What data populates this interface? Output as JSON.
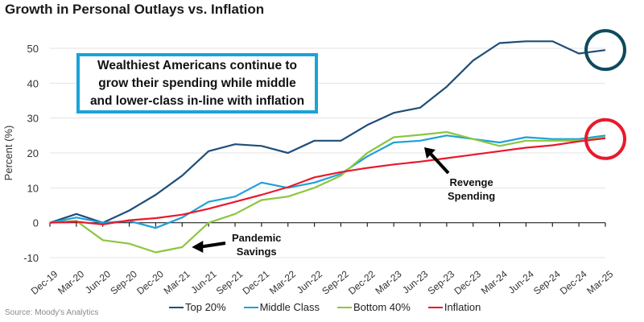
{
  "chart_data": {
    "type": "line",
    "title": "Growth in Personal Outlays vs. Inflation",
    "xlabel": "",
    "ylabel": "Percent (%)",
    "ylim": [
      -10,
      50
    ],
    "yticks": [
      -10,
      0,
      10,
      20,
      30,
      40,
      50
    ],
    "grid": true,
    "legend_position": "bottom",
    "categories": [
      "Dec-19",
      "Mar-20",
      "Jun-20",
      "Sep-20",
      "Dec-20",
      "Mar-21",
      "Jun-21",
      "Sep-21",
      "Dec-21",
      "Mar-22",
      "Jun-22",
      "Sep-22",
      "Dec-22",
      "Mar-23",
      "Jun-23",
      "Sep-23",
      "Dec-23",
      "Mar-24",
      "Jun-24",
      "Sep-24",
      "Dec-24",
      "Mar-25"
    ],
    "series": [
      {
        "name": "Top 20%",
        "color": "#1f4e79",
        "values": [
          0,
          2.5,
          0,
          3.5,
          8,
          13.5,
          20.5,
          22.5,
          22,
          20,
          23.5,
          23.5,
          28,
          31.5,
          33,
          39,
          46.5,
          51.5,
          52,
          52,
          48.5,
          49.5
        ]
      },
      {
        "name": "Middle Class",
        "color": "#1ea1d8",
        "values": [
          0,
          1.5,
          0,
          0.5,
          -1.5,
          1.5,
          6,
          7.5,
          11.5,
          10,
          11.5,
          14,
          19,
          23,
          23.5,
          25,
          24,
          23,
          24.5,
          24,
          24,
          25
        ]
      },
      {
        "name": "Bottom 40%",
        "color": "#8cc63f",
        "values": [
          0,
          0.5,
          -5,
          -6,
          -8.5,
          -7,
          0,
          2.5,
          6.5,
          7.5,
          10,
          13.5,
          20,
          24.5,
          25.2,
          26,
          24,
          22,
          23.5,
          23.5,
          23.5,
          24.5
        ]
      },
      {
        "name": "Inflation",
        "color": "#e8192c",
        "values": [
          0,
          0.3,
          -0.5,
          0.7,
          1.3,
          2.3,
          4,
          6,
          8,
          10.2,
          13,
          14.5,
          15.7,
          16.7,
          17.5,
          18.5,
          19.5,
          20.5,
          21.5,
          22.2,
          23.3,
          24.2
        ]
      }
    ],
    "annotations": [
      {
        "text": "Wealthiest Americans continue to grow their spending while middle and lower-class in-line with inflation",
        "style": "boxed-callout",
        "border_color": "#1aa3d9"
      },
      {
        "text": "Pandemic Savings",
        "points_to": {
          "series": "Bottom 40%",
          "category": "Mar-21"
        }
      },
      {
        "text": "Revenge Spending",
        "points_to": {
          "series": "Middle Class",
          "category": "Jun-23"
        }
      },
      {
        "text": "",
        "shape": "circle",
        "color": "#0d4a5e",
        "highlights": {
          "series": "Top 20%",
          "category": "Mar-25"
        }
      },
      {
        "text": "",
        "shape": "circle",
        "color": "#e8192c",
        "highlights": {
          "series": "Inflation",
          "category": "Mar-25"
        }
      }
    ],
    "source": "Source: Moody's Analytics"
  },
  "callout": {
    "line1": "Wealthiest Americans continue to",
    "line2": "grow their spending while middle",
    "line3": "and lower-class in-line with inflation"
  },
  "annotations": {
    "pandemic_line1": "Pandemic",
    "pandemic_line2": "Savings",
    "revenge_line1": "Revenge",
    "revenge_line2": "Spending"
  }
}
